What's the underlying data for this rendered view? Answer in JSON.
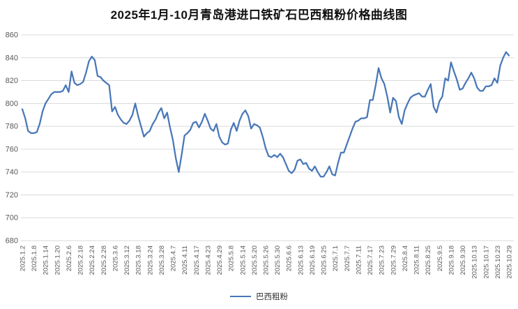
{
  "page": {
    "title": "2025年1月-10月青岛港进口铁矿石巴西粗粉价格曲线图"
  },
  "legend": {
    "series_label": "巴西粗粉"
  },
  "colors": {
    "line": "#4877b8",
    "grid": "#d9d9d9",
    "tick_text": "#595959",
    "title_text": "#111111",
    "background": "#ffffff"
  },
  "chart_data": {
    "type": "line",
    "title": "2025年1月-10月青岛港进口铁矿石巴西粗粉价格曲线图",
    "xlabel": "",
    "ylabel": "",
    "ylim": [
      680,
      860
    ],
    "y_ticks": [
      860,
      840,
      820,
      800,
      780,
      760,
      740,
      720,
      700,
      680
    ],
    "grid": "horizontal",
    "legend_position": "bottom",
    "x_tick_labels": [
      "2025.1.2",
      "2025.1.8",
      "2025.1.14",
      "2025.1.20",
      "2025.2.6",
      "2025.2.18",
      "2025.2.24",
      "2025.2.28",
      "2025.3.6",
      "2025.3.12",
      "2025.3.18",
      "2025.3.24",
      "2025.3.28",
      "2025.4.7",
      "2025.4.11",
      "2025.4.17",
      "2025.4.23",
      "2025.4.29",
      "2025.5.8",
      "2025.5.14",
      "2025.5.20",
      "2025.5.26",
      "2025.5.30",
      "2025.6.6",
      "2025.6.13",
      "2025.6.19",
      "2025.6.25",
      "2025.7.1",
      "2025.7.7",
      "2025.7.11",
      "2025.7.17",
      "2025.7.23",
      "2025.7.29",
      "2025.8.4",
      "2025.8.11",
      "2025.8.25",
      "2025.9.5",
      "2025.9.18",
      "2025.9.30",
      "2025.10.13",
      "2025.10.17",
      "2025.10.23",
      "2025.10.29"
    ],
    "label_every": 4,
    "series": [
      {
        "name": "巴西粗粉",
        "values": [
          795,
          787,
          776,
          774,
          774,
          775,
          782,
          793,
          800,
          804,
          808,
          810,
          810,
          810,
          811,
          816,
          810,
          828,
          818,
          816,
          817,
          819,
          827,
          837,
          841,
          838,
          824,
          823,
          820,
          818,
          816,
          793,
          797,
          790,
          786,
          783,
          782,
          785,
          790,
          800,
          789,
          780,
          771,
          774,
          776,
          782,
          786,
          792,
          796,
          787,
          792,
          779,
          768,
          752,
          740,
          755,
          772,
          774,
          777,
          783,
          784,
          779,
          784,
          791,
          785,
          778,
          776,
          782,
          771,
          766,
          764,
          765,
          777,
          783,
          776,
          785,
          791,
          794,
          789,
          778,
          782,
          781,
          779,
          771,
          761,
          754,
          753,
          755,
          753,
          756,
          753,
          747,
          741,
          739,
          742,
          750,
          751,
          747,
          748,
          743,
          741,
          745,
          740,
          736,
          736,
          740,
          745,
          738,
          737,
          748,
          757,
          757,
          764,
          771,
          778,
          784,
          785,
          787,
          787,
          788,
          803,
          803,
          816,
          831,
          822,
          817,
          806,
          792,
          805,
          802,
          788,
          782,
          794,
          800,
          805,
          807,
          808,
          809,
          806,
          806,
          812,
          817,
          797,
          792,
          802,
          806,
          822,
          820,
          836,
          828,
          821,
          812,
          813,
          818,
          822,
          827,
          822,
          814,
          811,
          811,
          815,
          815,
          816,
          822,
          818,
          833,
          840,
          845,
          842
        ]
      }
    ]
  }
}
